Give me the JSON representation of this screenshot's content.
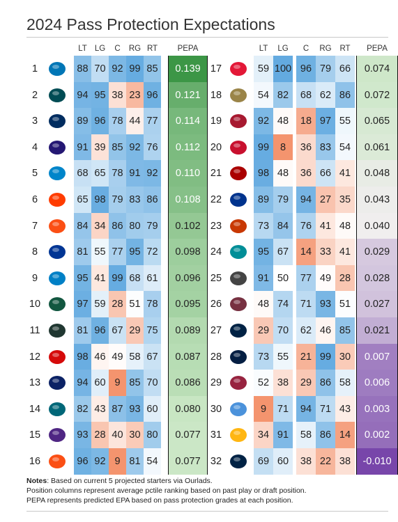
{
  "title": "2024 Pass Protection Expectations",
  "chart_data": {
    "type": "table",
    "columns": [
      "LT",
      "LG",
      "C",
      "RG",
      "RT",
      "PEPA"
    ],
    "rows": [
      {
        "rank": "1",
        "team": "Detroit Lions",
        "logo": "lions-logo",
        "color": "#0076B6",
        "LT": 88,
        "LG": 70,
        "C": 92,
        "RG": 99,
        "RT": 85,
        "PEPA": "0.139"
      },
      {
        "rank": "2",
        "team": "Philadelphia Eagles",
        "logo": "eagles-logo",
        "color": "#004C54",
        "LT": 94,
        "LG": 95,
        "C": 38,
        "RG": 23,
        "RT": 96,
        "PEPA": "0.121"
      },
      {
        "rank": "3",
        "team": "Indianapolis Colts",
        "logo": "colts-logo",
        "color": "#002C5F",
        "LT": 89,
        "LG": 96,
        "C": 78,
        "RG": 44,
        "RT": 77,
        "PEPA": "0.114"
      },
      {
        "rank": "4",
        "team": "Baltimore Ravens",
        "logo": "ravens-logo",
        "color": "#241773",
        "LT": 91,
        "LG": 39,
        "C": 85,
        "RG": 92,
        "RT": 76,
        "PEPA": "0.112"
      },
      {
        "rank": "5",
        "team": "Carolina Panthers",
        "logo": "panthers-logo",
        "color": "#0085CA",
        "LT": 68,
        "LG": 65,
        "C": 78,
        "RG": 91,
        "RT": 92,
        "PEPA": "0.110"
      },
      {
        "rank": "6",
        "team": "Cleveland Browns",
        "logo": "browns-logo",
        "color": "#FF3C00",
        "LT": 65,
        "LG": 98,
        "C": 79,
        "RG": 83,
        "RT": 86,
        "PEPA": "0.108"
      },
      {
        "rank": "7",
        "team": "Cincinnati Bengals",
        "logo": "bengals-logo",
        "color": "#FB4F14",
        "LT": 84,
        "LG": 34,
        "C": 86,
        "RG": 80,
        "RT": 79,
        "PEPA": "0.102"
      },
      {
        "rank": "8",
        "team": "Los Angeles Rams",
        "logo": "rams-logo",
        "color": "#003594",
        "LT": 81,
        "LG": 55,
        "C": 77,
        "RG": 95,
        "RT": 72,
        "PEPA": "0.098"
      },
      {
        "rank": "9",
        "team": "Los Angeles Chargers",
        "logo": "chargers-logo",
        "color": "#0080C6",
        "LT": 95,
        "LG": 41,
        "C": 99,
        "RG": 68,
        "RT": 61,
        "PEPA": "0.096"
      },
      {
        "rank": "10",
        "team": "New York Jets",
        "logo": "jets-logo",
        "color": "#125740",
        "LT": 97,
        "LG": 59,
        "C": 28,
        "RG": 51,
        "RT": 78,
        "PEPA": "0.095"
      },
      {
        "rank": "11",
        "team": "Green Bay Packers",
        "logo": "packers-logo",
        "color": "#203731",
        "LT": 81,
        "LG": 96,
        "C": 67,
        "RG": 29,
        "RT": 75,
        "PEPA": "0.089"
      },
      {
        "rank": "12",
        "team": "Tampa Bay Buccaneers",
        "logo": "buccaneers-logo",
        "color": "#D50A0A",
        "LT": 98,
        "LG": 46,
        "C": 49,
        "RG": 58,
        "RT": 67,
        "PEPA": "0.087"
      },
      {
        "rank": "13",
        "team": "New York Giants",
        "logo": "giants-logo",
        "color": "#0B2265",
        "LT": 94,
        "LG": 60,
        "C": 9,
        "RG": 85,
        "RT": 70,
        "PEPA": "0.086"
      },
      {
        "rank": "14",
        "team": "Jacksonville Jaguars",
        "logo": "jaguars-logo",
        "color": "#006778",
        "LT": 82,
        "LG": 43,
        "C": 87,
        "RG": 93,
        "RT": 60,
        "PEPA": "0.080"
      },
      {
        "rank": "15",
        "team": "Minnesota Vikings",
        "logo": "vikings-logo",
        "color": "#4F2683",
        "LT": 93,
        "LG": 28,
        "C": 40,
        "RG": 30,
        "RT": 80,
        "PEPA": "0.077"
      },
      {
        "rank": "16",
        "team": "Denver Broncos",
        "logo": "broncos-logo",
        "color": "#FB4F14",
        "LT": 96,
        "LG": 92,
        "C": 9,
        "RG": 81,
        "RT": 54,
        "PEPA": "0.077"
      },
      {
        "rank": "17",
        "team": "Kansas City Chiefs",
        "logo": "chiefs-logo",
        "color": "#E31837",
        "LT": 59,
        "LG": 100,
        "C": 96,
        "RG": 79,
        "RT": 66,
        "PEPA": "0.074"
      },
      {
        "rank": "18",
        "team": "New Orleans Saints",
        "logo": "saints-logo",
        "color": "#9A8448",
        "LT": 54,
        "LG": 82,
        "C": 68,
        "RG": 62,
        "RT": 86,
        "PEPA": "0.072"
      },
      {
        "rank": "19",
        "team": "Atlanta Falcons",
        "logo": "falcons-logo",
        "color": "#A71930",
        "LT": 92,
        "LG": 48,
        "C": 18,
        "RG": 97,
        "RT": 55,
        "PEPA": "0.065"
      },
      {
        "rank": "20",
        "team": "Houston Texans",
        "logo": "texans-logo",
        "color": "#C8102E",
        "LT": 99,
        "LG": 8,
        "C": 36,
        "RG": 83,
        "RT": 54,
        "PEPA": "0.061"
      },
      {
        "rank": "21",
        "team": "San Francisco 49ers",
        "logo": "49ers-logo",
        "color": "#AA0000",
        "LT": 98,
        "LG": 48,
        "C": 36,
        "RG": 66,
        "RT": 41,
        "PEPA": "0.048"
      },
      {
        "rank": "22",
        "team": "Buffalo Bills",
        "logo": "bills-logo",
        "color": "#00338D",
        "LT": 89,
        "LG": 79,
        "C": 94,
        "RG": 27,
        "RT": 35,
        "PEPA": "0.043"
      },
      {
        "rank": "23",
        "team": "Chicago Bears",
        "logo": "bears-logo",
        "color": "#C83803",
        "LT": 73,
        "LG": 84,
        "C": 76,
        "RG": 41,
        "RT": 48,
        "PEPA": "0.040"
      },
      {
        "rank": "24",
        "team": "Miami Dolphins",
        "logo": "dolphins-logo",
        "color": "#008E97",
        "LT": 95,
        "LG": 67,
        "C": 14,
        "RG": 33,
        "RT": 41,
        "PEPA": "0.029"
      },
      {
        "rank": "25",
        "team": "Las Vegas Raiders",
        "logo": "raiders-logo",
        "color": "#444444",
        "LT": 91,
        "LG": 50,
        "C": 77,
        "RG": 49,
        "RT": 28,
        "PEPA": "0.028"
      },
      {
        "rank": "26",
        "team": "Washington Commanders",
        "logo": "commanders-logo",
        "color": "#773141",
        "LT": 48,
        "LG": 74,
        "C": 71,
        "RG": 93,
        "RT": 51,
        "PEPA": "0.027"
      },
      {
        "rank": "27",
        "team": "New England Patriots",
        "logo": "patriots-logo",
        "color": "#002244",
        "LT": 29,
        "LG": 70,
        "C": 62,
        "RG": 46,
        "RT": 85,
        "PEPA": "0.021"
      },
      {
        "rank": "28",
        "team": "Dallas Cowboys",
        "logo": "cowboys-logo",
        "color": "#041E42",
        "LT": 73,
        "LG": 55,
        "C": 21,
        "RG": 99,
        "RT": 30,
        "PEPA": "0.007"
      },
      {
        "rank": "29",
        "team": "Arizona Cardinals",
        "logo": "cardinals-logo",
        "color": "#97233F",
        "LT": 52,
        "LG": 38,
        "C": 29,
        "RG": 86,
        "RT": 58,
        "PEPA": "0.006"
      },
      {
        "rank": "30",
        "team": "Tennessee Titans",
        "logo": "titans-logo",
        "color": "#4B92DB",
        "LT": 9,
        "LG": 71,
        "C": 94,
        "RG": 71,
        "RT": 43,
        "PEPA": "0.003"
      },
      {
        "rank": "31",
        "team": "Pittsburgh Steelers",
        "logo": "steelers-logo",
        "color": "#FFB612",
        "LT": 34,
        "LG": 91,
        "C": 58,
        "RG": 86,
        "RT": 14,
        "PEPA": "0.002"
      },
      {
        "rank": "32",
        "team": "Seattle Seahawks",
        "logo": "seahawks-logo",
        "color": "#002244",
        "LT": 69,
        "LG": 60,
        "C": 38,
        "RG": 22,
        "RT": 38,
        "PEPA": "-0.010"
      }
    ]
  },
  "notes": {
    "label": "Notes",
    "line1": ": Based on current 5 projected starters via Ourlads.",
    "line2": "Position columns represent average pctile ranking based on past play or draft position.",
    "line3": "PEPA represents predicted EPA based on pass protection grades at each position."
  }
}
